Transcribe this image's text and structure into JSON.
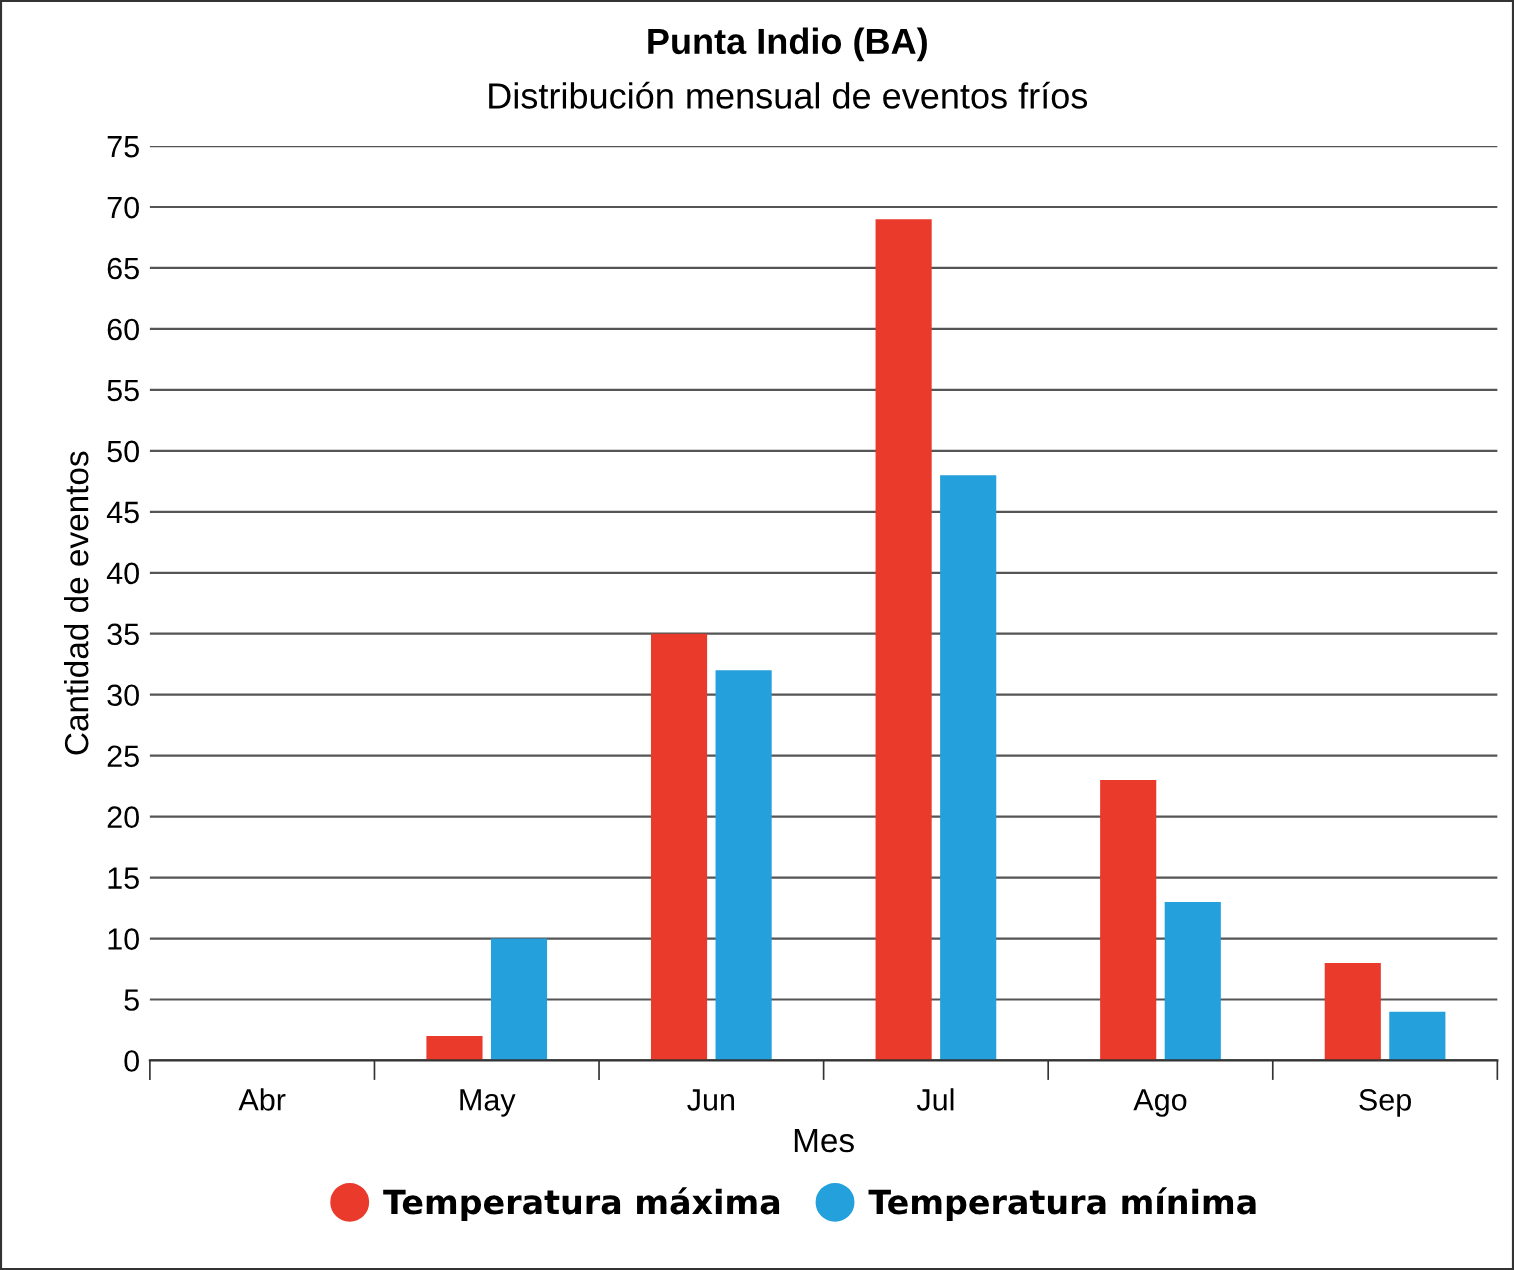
{
  "chart_data": {
    "type": "bar",
    "title": "Punta Indio (BA)",
    "subtitle": "Distribución mensual de eventos fríos",
    "xlabel": "Mes",
    "ylabel": "Cantidad de eventos",
    "categories": [
      "Abr",
      "May",
      "Jun",
      "Jul",
      "Ago",
      "Sep"
    ],
    "series": [
      {
        "name": "Temperatura máxima",
        "color": "#ea3a2b",
        "values": [
          0,
          2,
          35,
          69,
          23,
          8
        ]
      },
      {
        "name": "Temperatura mínima",
        "color": "#24a0dc",
        "values": [
          0,
          10,
          32,
          48,
          13,
          4
        ]
      }
    ],
    "ylim": [
      0,
      75
    ],
    "yticks": [
      0,
      5,
      10,
      15,
      20,
      25,
      30,
      35,
      40,
      45,
      50,
      55,
      60,
      65,
      70,
      75
    ],
    "grid": "y",
    "legend": "bottom"
  }
}
